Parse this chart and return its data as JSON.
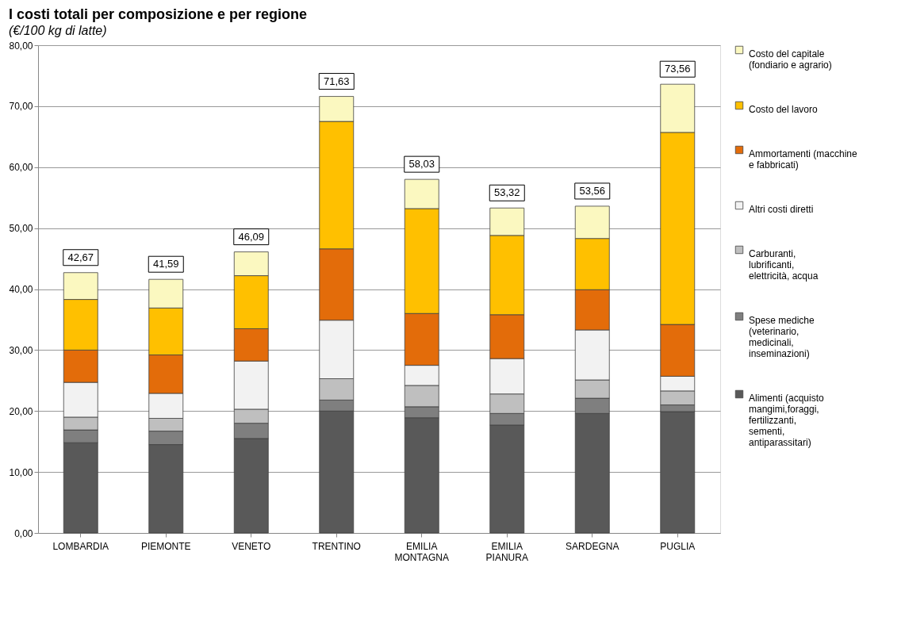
{
  "chart_data": {
    "type": "bar",
    "stacked": true,
    "title": "I costi totali per composizione e per regione",
    "subtitle": "(€/100 kg di latte)",
    "categories": [
      "LOMBARDIA",
      "PIEMONTE",
      "VENETO",
      "TRENTINO",
      "EMILIA MONTAGNA",
      "EMILIA PIANURA",
      "SARDEGNA",
      "PUGLIA"
    ],
    "series": [
      {
        "name": "Alimenti (acquisto mangimi,foraggi, fertilizzanti, sementi, antiparassitari)",
        "color": "#595959",
        "values": [
          14.8,
          14.5,
          15.5,
          20.0,
          18.9,
          17.7,
          19.6,
          19.9
        ]
      },
      {
        "name": "Spese mediche (veterinario, medicinali, inseminazioni)",
        "color": "#7f7f7f",
        "values": [
          2.1,
          2.2,
          2.5,
          1.8,
          1.8,
          1.9,
          2.5,
          1.1
        ]
      },
      {
        "name": "Carburanti, lubrificanti, elettricità, acqua",
        "color": "#bfbfbf",
        "values": [
          2.1,
          2.1,
          2.3,
          3.5,
          3.5,
          3.2,
          3.0,
          2.3
        ]
      },
      {
        "name": "Altri costi diretti",
        "color": "#f2f2f2",
        "values": [
          5.7,
          4.1,
          7.9,
          9.6,
          3.3,
          5.8,
          8.2,
          2.4
        ]
      },
      {
        "name": "Ammortamenti (macchine e fabbricati)",
        "color": "#e36c0a",
        "values": [
          5.3,
          6.3,
          5.3,
          11.7,
          8.5,
          7.2,
          6.6,
          8.5
        ]
      },
      {
        "name": "Costo del lavoro",
        "color": "#ffc000",
        "values": [
          8.3,
          7.7,
          8.7,
          20.9,
          17.2,
          13.0,
          8.4,
          31.5
        ]
      },
      {
        "name": "Costo del capitale (fondiario e agrario)",
        "color": "#fbf8c0",
        "values": [
          4.4,
          4.7,
          3.9,
          4.1,
          4.8,
          4.5,
          5.3,
          7.9
        ]
      }
    ],
    "totals": [
      "42,67",
      "41,59",
      "46,09",
      "71,63",
      "58,03",
      "53,32",
      "53,56",
      "73,56"
    ],
    "ylim": [
      0,
      80
    ],
    "yticks": [
      {
        "value": 0,
        "label": "0,00"
      },
      {
        "value": 10,
        "label": "10,00"
      },
      {
        "value": 20,
        "label": "20,00"
      },
      {
        "value": 30,
        "label": "30,00"
      },
      {
        "value": 40,
        "label": "40,00"
      },
      {
        "value": 50,
        "label": "50,00"
      },
      {
        "value": 60,
        "label": "60,00"
      },
      {
        "value": 70,
        "label": "70,00"
      },
      {
        "value": 80,
        "label": "80,00"
      }
    ],
    "grid": "y",
    "legend": "right"
  }
}
